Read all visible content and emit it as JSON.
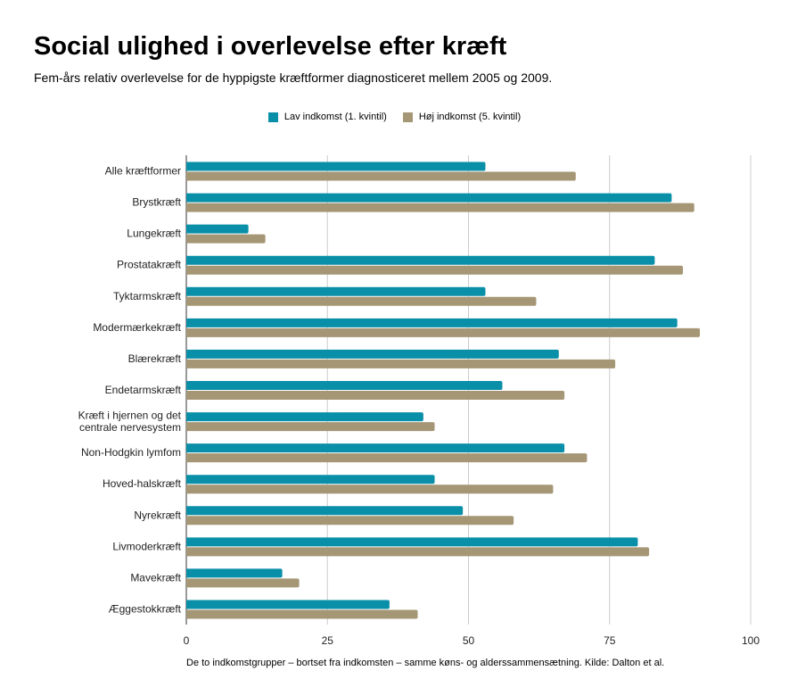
{
  "chart_data": {
    "type": "bar",
    "orientation": "horizontal",
    "title": "Social ulighed i overlevelse efter kræft",
    "subtitle": "Fem-års relativ overlevelse for de hyppigste kræftformer diagnosticeret mellem 2005 og 2009.",
    "footer": "De to indkomstgrupper – bortset fra indkomsten  – samme køns- og alderssammensætning. Kilde: Dalton et al.",
    "categories": [
      "Alle kræftformer",
      "Brystkræft",
      "Lungekræft",
      "Prostatakræft",
      "Tyktarmskræft",
      "Modermærkekræft",
      "Blærekræft",
      "Endetarmskræft",
      "Kræft i hjernen og det centrale nervesystem",
      "Non-Hodgkin lymfom",
      "Hoved-halskræft",
      "Nyrekræft",
      "Livmoderkræft",
      "Mavekræft",
      "Æggestokkræft"
    ],
    "series": [
      {
        "name": "Lav indkomst (1. kvintil)",
        "color": "#0a8fa8",
        "values": [
          53,
          86,
          11,
          83,
          53,
          87,
          66,
          56,
          42,
          67,
          44,
          49,
          80,
          17,
          36
        ]
      },
      {
        "name": "Høj indkomst (5. kvintil)",
        "color": "#a59775",
        "values": [
          69,
          90,
          14,
          88,
          62,
          91,
          76,
          67,
          44,
          71,
          65,
          58,
          82,
          20,
          41
        ]
      }
    ],
    "xlim": [
      0,
      100
    ],
    "xticks": [
      "0",
      "25",
      "50",
      "75",
      "100"
    ],
    "grid": true,
    "legend_position": "top-center"
  }
}
